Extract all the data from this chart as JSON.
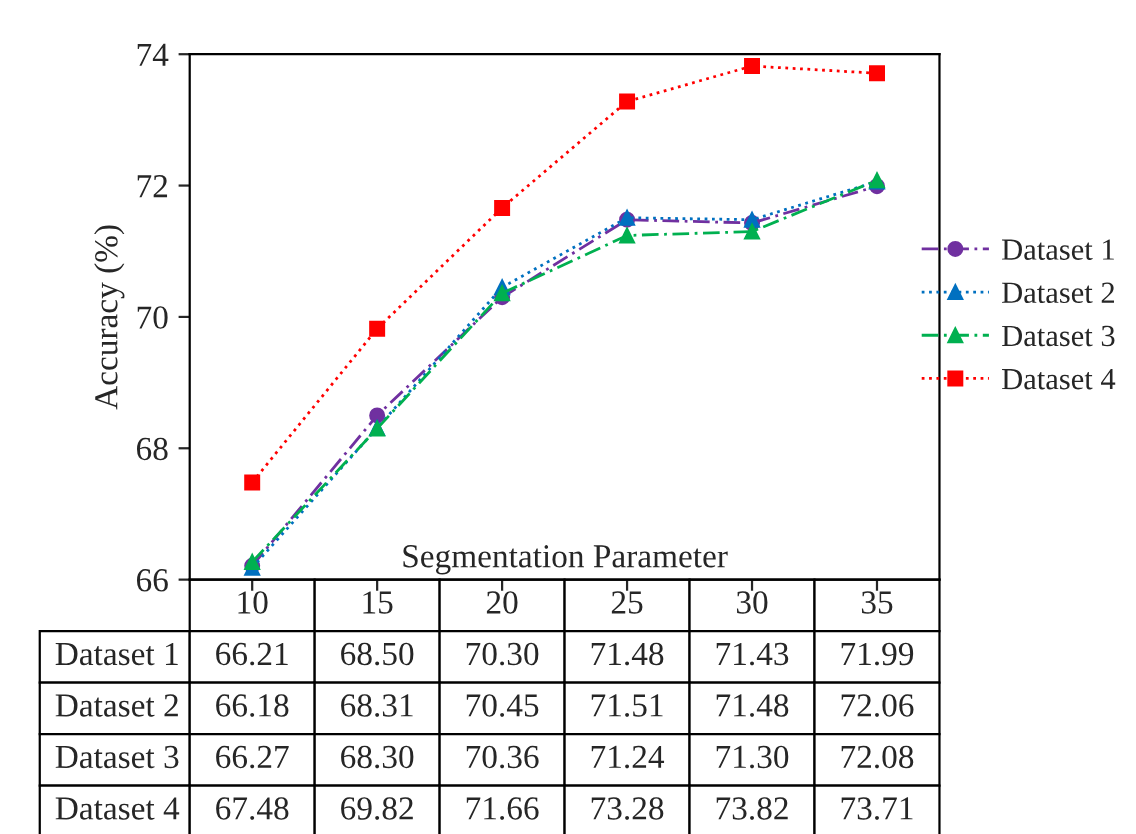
{
  "chart_data": {
    "type": "line",
    "xlabel": "Segmentation Parameter",
    "ylabel": "Accuracy (%)",
    "categories": [
      "10",
      "15",
      "20",
      "25",
      "30",
      "35"
    ],
    "series": [
      {
        "name": "Dataset 1",
        "color": "#7030a0",
        "marker": "circle",
        "line_style": "dashed",
        "values": [
          66.21,
          68.5,
          70.3,
          71.48,
          71.43,
          71.99
        ],
        "value_labels": [
          "66.21",
          "68.50",
          "70.30",
          "71.48",
          "71.43",
          "71.99"
        ]
      },
      {
        "name": "Dataset 2",
        "color": "#0070c0",
        "marker": "triangle",
        "line_style": "dotted",
        "values": [
          66.18,
          68.31,
          70.45,
          71.51,
          71.48,
          72.06
        ],
        "value_labels": [
          "66.18",
          "68.31",
          "70.45",
          "71.51",
          "71.48",
          "72.06"
        ]
      },
      {
        "name": "Dataset 3",
        "color": "#00b050",
        "marker": "triangle",
        "line_style": "dashed",
        "values": [
          66.27,
          68.3,
          70.36,
          71.24,
          71.3,
          72.08
        ],
        "value_labels": [
          "66.27",
          "68.30",
          "70.36",
          "71.24",
          "71.30",
          "72.08"
        ]
      },
      {
        "name": "Dataset 4",
        "color": "#ff0000",
        "marker": "square",
        "line_style": "dotted",
        "values": [
          67.48,
          69.82,
          71.66,
          73.28,
          73.82,
          73.71
        ],
        "value_labels": [
          "67.48",
          "69.82",
          "71.66",
          "73.28",
          "73.82",
          "73.71"
        ]
      }
    ],
    "ylim": [
      66,
      74
    ],
    "yticks": [
      66,
      68,
      70,
      72,
      74
    ],
    "grid": false,
    "legend": "right"
  }
}
